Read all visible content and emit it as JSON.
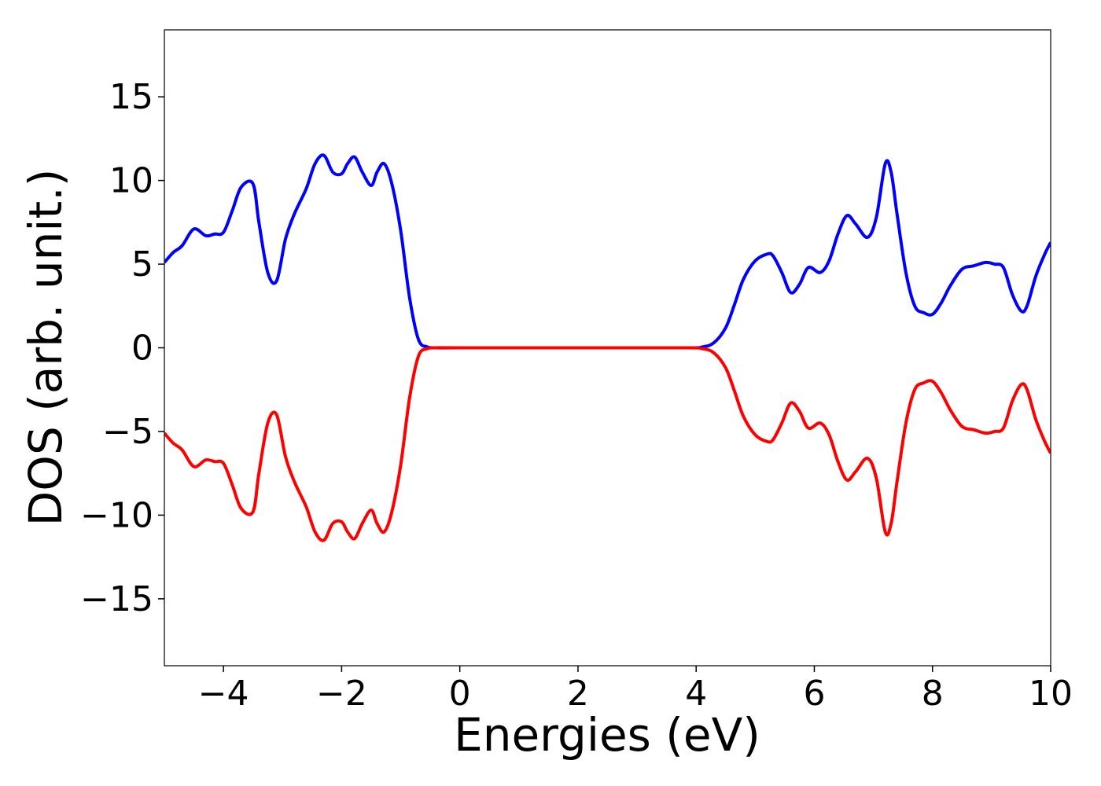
{
  "chart_data": {
    "type": "line",
    "title": "",
    "xlabel": "Energies (eV)",
    "ylabel": "DOS (arb. unit.)",
    "xlim": [
      -5,
      10
    ],
    "ylim": [
      -19,
      19
    ],
    "grid": false,
    "legend": "none",
    "xticks": [
      -4,
      -2,
      0,
      2,
      4,
      6,
      8,
      10
    ],
    "xtick_labels": [
      "−4",
      "−2",
      "0",
      "2",
      "4",
      "6",
      "8",
      "10"
    ],
    "yticks": [
      -15,
      -10,
      -5,
      0,
      5,
      10,
      15
    ],
    "ytick_labels": [
      "−15",
      "−10",
      "−5",
      "0",
      "5",
      "10",
      "15"
    ],
    "series": [
      {
        "color": "#0000ff",
        "x": [
          -5.0,
          -4.85,
          -4.7,
          -4.5,
          -4.3,
          -4.15,
          -4.0,
          -3.85,
          -3.7,
          -3.5,
          -3.4,
          -3.25,
          -3.1,
          -2.95,
          -2.8,
          -2.6,
          -2.45,
          -2.3,
          -2.15,
          -2.0,
          -1.9,
          -1.78,
          -1.65,
          -1.5,
          -1.4,
          -1.28,
          -1.15,
          -1.0,
          -0.85,
          -0.7,
          -0.55,
          -0.4,
          0.0,
          2.0,
          3.8,
          4.1,
          4.3,
          4.5,
          4.65,
          4.8,
          5.0,
          5.2,
          5.3,
          5.45,
          5.6,
          5.75,
          5.9,
          6.1,
          6.25,
          6.4,
          6.55,
          6.7,
          6.9,
          7.05,
          7.2,
          7.3,
          7.4,
          7.55,
          7.7,
          7.85,
          8.0,
          8.15,
          8.3,
          8.5,
          8.7,
          8.9,
          9.05,
          9.2,
          9.35,
          9.5,
          9.6,
          9.75,
          9.9,
          10.0
        ],
        "y": [
          5.1,
          5.7,
          6.1,
          7.1,
          6.7,
          6.8,
          6.9,
          8.2,
          9.6,
          9.8,
          7.5,
          4.5,
          4.0,
          6.5,
          8.0,
          9.5,
          11.0,
          11.5,
          10.5,
          10.4,
          11.0,
          11.4,
          10.5,
          9.7,
          10.5,
          11.0,
          9.8,
          7.0,
          3.0,
          0.5,
          0.05,
          0.0,
          0.0,
          0.0,
          0.0,
          0.05,
          0.3,
          1.2,
          2.6,
          4.1,
          5.2,
          5.6,
          5.5,
          4.5,
          3.3,
          3.8,
          4.8,
          4.5,
          5.2,
          6.8,
          7.9,
          7.4,
          6.6,
          7.8,
          11.0,
          10.5,
          8.0,
          4.5,
          2.5,
          2.1,
          2.0,
          2.7,
          3.7,
          4.7,
          4.9,
          5.1,
          5.0,
          4.8,
          3.2,
          2.2,
          2.5,
          4.3,
          5.6,
          6.3
        ]
      },
      {
        "color": "#ff0000",
        "x": [
          -5.0,
          -4.85,
          -4.7,
          -4.5,
          -4.3,
          -4.15,
          -4.0,
          -3.85,
          -3.7,
          -3.5,
          -3.4,
          -3.25,
          -3.1,
          -2.95,
          -2.8,
          -2.6,
          -2.45,
          -2.3,
          -2.15,
          -2.0,
          -1.9,
          -1.78,
          -1.65,
          -1.5,
          -1.4,
          -1.28,
          -1.15,
          -1.0,
          -0.85,
          -0.7,
          -0.55,
          -0.4,
          0.0,
          2.0,
          3.8,
          4.1,
          4.3,
          4.5,
          4.65,
          4.8,
          5.0,
          5.2,
          5.3,
          5.45,
          5.6,
          5.75,
          5.9,
          6.1,
          6.25,
          6.4,
          6.55,
          6.7,
          6.9,
          7.05,
          7.2,
          7.3,
          7.4,
          7.55,
          7.7,
          7.85,
          8.0,
          8.15,
          8.3,
          8.5,
          8.7,
          8.9,
          9.05,
          9.2,
          9.35,
          9.5,
          9.6,
          9.75,
          9.9,
          10.0
        ],
        "y": [
          -5.1,
          -5.7,
          -6.1,
          -7.1,
          -6.7,
          -6.8,
          -6.9,
          -8.2,
          -9.6,
          -9.8,
          -7.5,
          -4.5,
          -4.0,
          -6.5,
          -8.0,
          -9.5,
          -11.0,
          -11.5,
          -10.5,
          -10.4,
          -11.0,
          -11.4,
          -10.5,
          -9.7,
          -10.5,
          -11.0,
          -9.8,
          -7.0,
          -3.0,
          -0.5,
          -0.05,
          0.0,
          0.0,
          0.0,
          0.0,
          -0.05,
          -0.3,
          -1.2,
          -2.6,
          -4.1,
          -5.2,
          -5.6,
          -5.5,
          -4.5,
          -3.3,
          -3.8,
          -4.8,
          -4.5,
          -5.2,
          -6.8,
          -7.9,
          -7.4,
          -6.6,
          -7.8,
          -11.0,
          -10.5,
          -8.0,
          -4.5,
          -2.5,
          -2.1,
          -2.0,
          -2.7,
          -3.7,
          -4.7,
          -4.9,
          -5.1,
          -5.0,
          -4.8,
          -3.2,
          -2.2,
          -2.5,
          -4.3,
          -5.6,
          -6.3
        ]
      }
    ]
  }
}
